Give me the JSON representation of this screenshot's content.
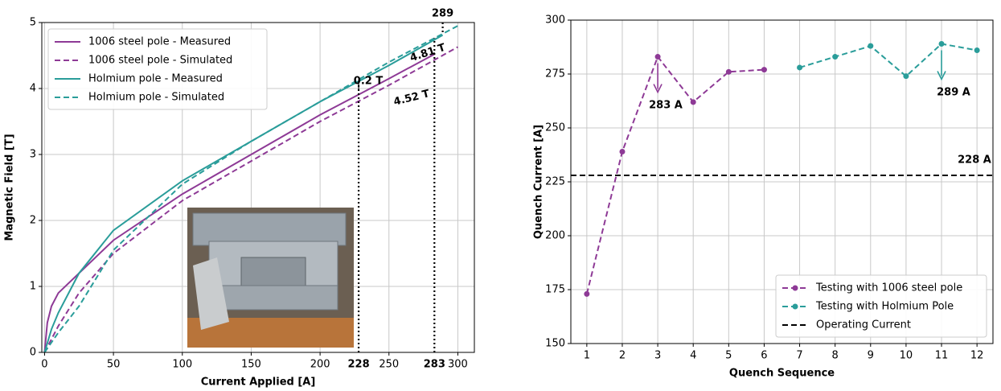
{
  "chart_data": [
    {
      "type": "line",
      "xlabel": "Current Applied [A]",
      "ylabel": "Magnetic Field [T]",
      "xlim": [
        -2,
        312
      ],
      "ylim": [
        0,
        5
      ],
      "xticks": [
        0,
        50,
        100,
        150,
        200,
        250,
        300
      ],
      "yticks": [
        0,
        1,
        2,
        3,
        4,
        5
      ],
      "grid": true,
      "legend": "upper left",
      "series": [
        {
          "name": "1006 steel pole - Measured",
          "color": "#8e3a96",
          "style": "solid",
          "x": [
            0,
            2,
            5,
            10,
            25,
            50,
            100,
            150,
            200,
            250,
            283
          ],
          "values": [
            0,
            0.45,
            0.7,
            0.9,
            1.2,
            1.7,
            2.4,
            3.0,
            3.6,
            4.15,
            4.52
          ]
        },
        {
          "name": "1006 steel pole - Simulated",
          "color": "#8e3a96",
          "style": "dashed",
          "x": [
            0,
            10,
            25,
            50,
            100,
            150,
            200,
            250,
            300
          ],
          "values": [
            0,
            0.4,
            0.9,
            1.5,
            2.3,
            2.9,
            3.5,
            4.05,
            4.63
          ]
        },
        {
          "name": "Holmium pole - Measured",
          "color": "#2a9d9a",
          "style": "solid",
          "x": [
            0,
            5,
            10,
            25,
            50,
            100,
            150,
            200,
            250,
            289
          ],
          "values": [
            0,
            0.35,
            0.6,
            1.2,
            1.85,
            2.6,
            3.2,
            3.8,
            4.35,
            4.81
          ]
        },
        {
          "name": "Holmium pole - Simulated",
          "color": "#2a9d9a",
          "style": "dashed",
          "x": [
            0,
            10,
            25,
            50,
            100,
            150,
            200,
            250,
            300
          ],
          "values": [
            0,
            0.3,
            0.7,
            1.55,
            2.55,
            3.2,
            3.8,
            4.4,
            4.95
          ]
        }
      ],
      "x_markers": [
        {
          "value": 228,
          "label": "228"
        },
        {
          "value": 283,
          "label": "283"
        }
      ],
      "top_markers": [
        {
          "value": 289,
          "label": "289"
        }
      ],
      "annotations": [
        {
          "text": "4.81 T",
          "color": "#2a9d9a"
        },
        {
          "text": "4.52 T",
          "color": "#8e3a96"
        },
        {
          "text": "0.2 T",
          "color": "#000000"
        }
      ]
    },
    {
      "type": "line",
      "xlabel": "Quench Sequence",
      "ylabel": "Quench Current [A]",
      "x": [
        1,
        2,
        3,
        4,
        5,
        6,
        7,
        8,
        9,
        10,
        11,
        12
      ],
      "xlim": [
        0.55,
        12.45
      ],
      "xticks": [
        1,
        2,
        3,
        4,
        5,
        6,
        7,
        8,
        9,
        10,
        11,
        12
      ],
      "ylim": [
        150,
        300
      ],
      "yticks": [
        150,
        175,
        200,
        225,
        250,
        275,
        300
      ],
      "grid": true,
      "legend": "lower right",
      "markers": true,
      "series": [
        {
          "name": "Testing with 1006 steel pole",
          "color": "#8e3a96",
          "style": "dashed",
          "values": [
            173,
            239,
            283,
            262,
            276,
            277,
            null,
            null,
            null,
            null,
            null,
            null
          ]
        },
        {
          "name": "Testing with Holmium Pole",
          "color": "#2a9d9a",
          "style": "dashed",
          "values": [
            null,
            null,
            null,
            null,
            null,
            null,
            278,
            283,
            288,
            274,
            289,
            286
          ]
        }
      ],
      "reference_line": {
        "name": "Operating Current",
        "value": 228,
        "color": "#000000"
      },
      "annotations": [
        {
          "text": "283 A",
          "color": "#8e3a96"
        },
        {
          "text": "289 A",
          "color": "#2a9d9a"
        },
        {
          "text": "228 A",
          "color": "#000000"
        }
      ]
    }
  ]
}
